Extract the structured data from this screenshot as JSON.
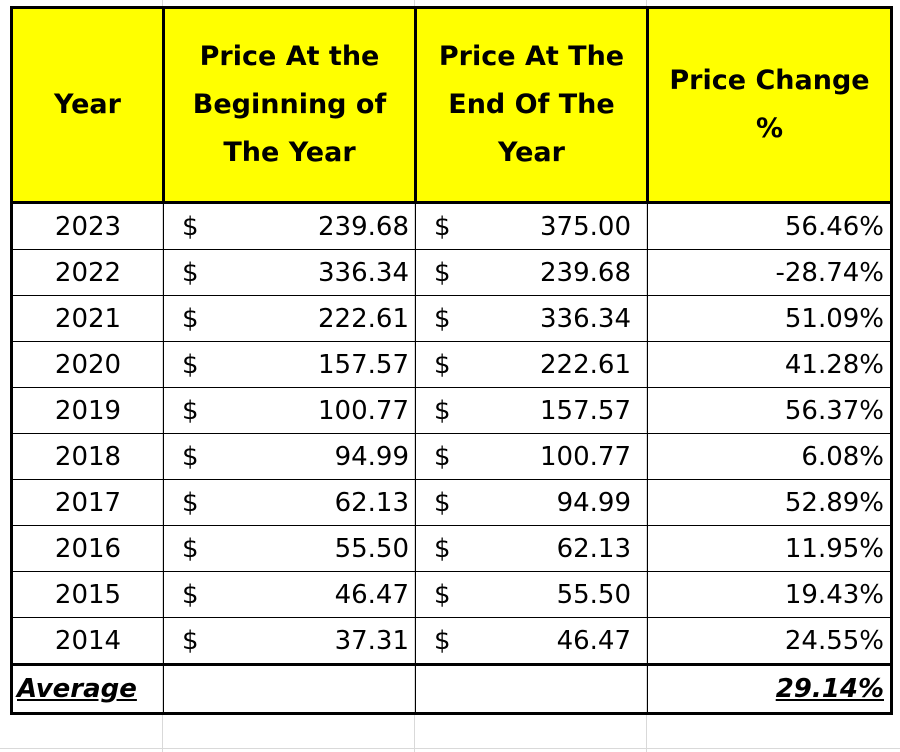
{
  "table": {
    "headers": {
      "year": "Year",
      "begin": "Price At the Beginning of The Year",
      "end": "Price At The End Of The Year",
      "change": "Price Change %"
    },
    "currency_symbol": "$",
    "rows": [
      {
        "year": "2023",
        "begin": "239.68",
        "end": "375.00",
        "change": "56.46%"
      },
      {
        "year": "2022",
        "begin": "336.34",
        "end": "239.68",
        "change": "-28.74%"
      },
      {
        "year": "2021",
        "begin": "222.61",
        "end": "336.34",
        "change": "51.09%"
      },
      {
        "year": "2020",
        "begin": "157.57",
        "end": "222.61",
        "change": "41.28%"
      },
      {
        "year": "2019",
        "begin": "100.77",
        "end": "157.57",
        "change": "56.37%"
      },
      {
        "year": "2018",
        "begin": "94.99",
        "end": "100.77",
        "change": "6.08%"
      },
      {
        "year": "2017",
        "begin": "62.13",
        "end": "94.99",
        "change": "52.89%"
      },
      {
        "year": "2016",
        "begin": "55.50",
        "end": "62.13",
        "change": "11.95%"
      },
      {
        "year": "2015",
        "begin": "46.47",
        "end": "55.50",
        "change": "19.43%"
      },
      {
        "year": "2014",
        "begin": "37.31",
        "end": "46.47",
        "change": "24.55%"
      }
    ],
    "average": {
      "label": "Average",
      "value": "29.14%"
    },
    "colors": {
      "header_fill": "#ffff00",
      "border": "#000000",
      "gridline": "#d9d9d9"
    }
  }
}
